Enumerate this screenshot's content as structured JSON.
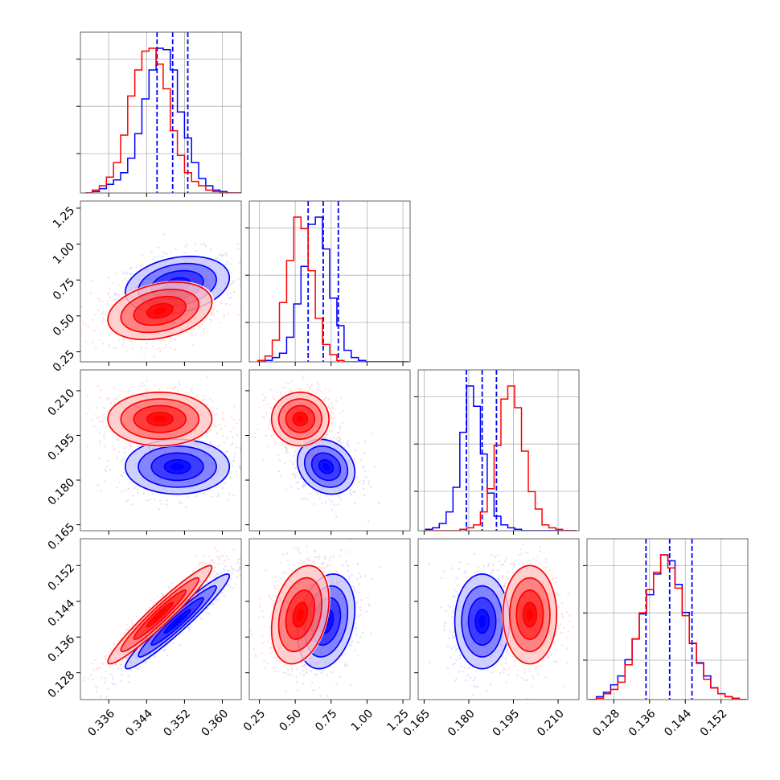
{
  "chart_data": {
    "type": "corner",
    "parameters": [
      {
        "range": [
          0.33,
          0.364
        ],
        "ticks": [
          0.336,
          0.344,
          0.352,
          0.36
        ],
        "tick_labels": [
          "0.336",
          "0.344",
          "0.352",
          "0.360"
        ]
      },
      {
        "range": [
          0.18,
          1.3
        ],
        "ticks": [
          0.25,
          0.5,
          0.75,
          1.0,
          1.25
        ],
        "tick_labels": [
          "0.25",
          "0.50",
          "0.75",
          "1.00",
          "1.25"
        ]
      },
      {
        "range": [
          0.163,
          0.217
        ],
        "ticks": [
          0.165,
          0.18,
          0.195,
          0.21
        ],
        "tick_labels": [
          "0.165",
          "0.180",
          "0.195",
          "0.210"
        ]
      },
      {
        "range": [
          0.122,
          0.158
        ],
        "ticks": [
          0.128,
          0.136,
          0.144,
          0.152
        ],
        "tick_labels": [
          "0.128",
          "0.136",
          "0.144",
          "0.152"
        ]
      }
    ],
    "series": [
      {
        "color": "#0000ff",
        "marginals": [
          {
            "edges_start": 0.331,
            "bin": 0.0015,
            "values": [
              0,
              1,
              3,
              6,
              9,
              14,
              24,
              41,
              65,
              85,
              100,
              99,
              85,
              56,
              38,
              21,
              10,
              5,
              2,
              1,
              0,
              0
            ]
          },
          {
            "edges_start": 0.24,
            "bin": 0.05,
            "values": [
              0,
              1,
              3,
              6,
              17,
              40,
              66,
              95,
              100,
              78,
              44,
              25,
              8,
              3,
              1,
              0,
              0,
              0,
              0,
              0,
              0
            ]
          },
          {
            "edges_start": 0.1655,
            "bin": 0.0023,
            "values": [
              1,
              2,
              5,
              13,
              30,
              68,
              100,
              86,
              53,
              26,
              10,
              4,
              2,
              1,
              0,
              0,
              0,
              0,
              0,
              0,
              0,
              0
            ]
          },
          {
            "edges_start": 0.1225,
            "bin": 0.0016,
            "values": [
              0,
              2,
              5,
              10,
              16,
              27,
              41,
              58,
              71,
              85,
              98,
              94,
              78,
              59,
              38,
              25,
              16,
              8,
              4,
              2,
              0,
              0
            ]
          }
        ],
        "quantiles": [
          [
            0.3462,
            0.3495,
            0.3527
          ],
          [
            0.59,
            0.695,
            0.8
          ],
          [
            0.1792,
            0.1845,
            0.1893
          ],
          [
            0.1352,
            0.1405,
            0.1455
          ]
        ],
        "gaussian": {
          "mean": [
            0.3505,
            0.715,
            0.1845,
            0.1395
          ],
          "std": [
            0.0055,
            0.1,
            0.0046,
            0.0053
          ],
          "corr": [
            [
              1,
              0.25,
              0,
              0.96
            ],
            [
              0.25,
              1,
              -0.2,
              0.25
            ],
            [
              0,
              -0.2,
              1,
              0
            ],
            [
              0.96,
              0.25,
              0,
              1
            ]
          ]
        }
      },
      {
        "color": "#ff0000",
        "marginals": [
          {
            "edges_start": 0.331,
            "bin": 0.0015,
            "values": [
              0,
              2,
              5,
              11,
              21,
              40,
              67,
              85,
              98,
              100,
              89,
              72,
              43,
              26,
              14,
              8,
              5,
              2,
              1,
              0,
              0,
              0
            ]
          },
          {
            "edges_start": 0.24,
            "bin": 0.05,
            "values": [
              1,
              4,
              15,
              41,
              70,
              100,
              92,
              63,
              30,
              12,
              5,
              1,
              0,
              0,
              0,
              0,
              0,
              0,
              0,
              0,
              0
            ]
          },
          {
            "edges_start": 0.1655,
            "bin": 0.0023,
            "values": [
              0,
              0,
              0,
              0,
              0,
              1,
              2,
              4,
              13,
              29,
              59,
              91,
              100,
              85,
              55,
              27,
              15,
              4,
              2,
              1,
              0,
              0
            ]
          },
          {
            "edges_start": 0.1225,
            "bin": 0.0016,
            "values": [
              0,
              1,
              4,
              7,
              12,
              24,
              42,
              60,
              76,
              88,
              100,
              91,
              77,
              58,
              39,
              25,
              14,
              8,
              4,
              2,
              1,
              0
            ]
          }
        ],
        "quantiles": [],
        "gaussian": {
          "mean": [
            0.3468,
            0.535,
            0.2005,
            0.141
          ],
          "std": [
            0.0055,
            0.1,
            0.0045,
            0.0055
          ],
          "corr": [
            [
              1,
              0.3,
              0,
              0.96
            ],
            [
              0.3,
              1,
              0,
              0.3
            ],
            [
              0,
              0,
              1,
              0
            ],
            [
              0.96,
              0.3,
              0,
              1
            ]
          ]
        }
      }
    ],
    "grid": true,
    "levels_sigma": [
      0.5,
      1,
      1.5,
      2
    ],
    "quantile_line_color": "#0000ff"
  }
}
